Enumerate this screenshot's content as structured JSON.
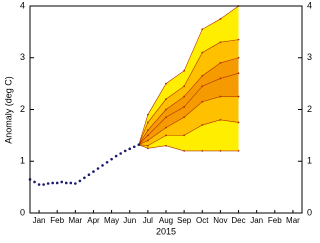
{
  "chart_data": {
    "type": "plume",
    "y_label": "Anomaly (deg C)",
    "x_label": "2015",
    "xlim": [
      0,
      15
    ],
    "xticks": [
      {
        "value": 0.5,
        "label": "Jan"
      },
      {
        "value": 1.5,
        "label": "Feb"
      },
      {
        "value": 2.5,
        "label": "Mar"
      },
      {
        "value": 3.5,
        "label": "Apr"
      },
      {
        "value": 4.5,
        "label": "May"
      },
      {
        "value": 5.5,
        "label": "Jun"
      },
      {
        "value": 6.5,
        "label": "Jul"
      },
      {
        "value": 7.5,
        "label": "Aug"
      },
      {
        "value": 8.5,
        "label": "Sep"
      },
      {
        "value": 9.5,
        "label": "Oct"
      },
      {
        "value": 10.5,
        "label": "Nov"
      },
      {
        "value": 11.5,
        "label": "Dec"
      },
      {
        "value": 12.5,
        "label": "Jan"
      },
      {
        "value": 13.5,
        "label": "Feb"
      },
      {
        "value": 14.5,
        "label": "Mar"
      }
    ],
    "ylim": [
      0,
      4
    ],
    "yticks": [
      0,
      1,
      2,
      3,
      4
    ],
    "observed": {
      "color": "#1a1a6e",
      "x": [
        0,
        0.25,
        0.5,
        0.75,
        1,
        1.25,
        1.5,
        1.75,
        2,
        2.25,
        2.5,
        2.75,
        3,
        3.25,
        3.5,
        3.75,
        4,
        4.25,
        4.5,
        4.75,
        5,
        5.25,
        5.5,
        5.75,
        6
      ],
      "values": [
        0.65,
        0.6,
        0.55,
        0.55,
        0.57,
        0.58,
        0.58,
        0.6,
        0.58,
        0.58,
        0.57,
        0.62,
        0.68,
        0.74,
        0.8,
        0.86,
        0.92,
        0.98,
        1.04,
        1.1,
        1.15,
        1.2,
        1.24,
        1.28,
        1.32
      ]
    },
    "forecast": {
      "x": [
        6,
        6.5,
        7.5,
        8.5,
        9.5,
        10.5,
        11.5
      ],
      "line_color": "#b03000",
      "band_colors": [
        "#ffee00",
        "#ffc000",
        "#f59a00",
        "#f59a00",
        "#ffc000",
        "#ffee00"
      ],
      "series": [
        {
          "values": [
            1.32,
            1.9,
            2.5,
            2.75,
            3.55,
            3.75,
            4.0
          ]
        },
        {
          "values": [
            1.32,
            1.75,
            2.2,
            2.45,
            3.1,
            3.3,
            3.35
          ]
        },
        {
          "values": [
            1.32,
            1.6,
            2.0,
            2.25,
            2.65,
            2.9,
            3.0
          ]
        },
        {
          "values": [
            1.32,
            1.5,
            1.85,
            2.05,
            2.45,
            2.6,
            2.7
          ]
        },
        {
          "values": [
            1.32,
            1.4,
            1.65,
            1.85,
            2.15,
            2.25,
            2.25
          ]
        },
        {
          "values": [
            1.32,
            1.3,
            1.5,
            1.5,
            1.7,
            1.8,
            1.75
          ]
        },
        {
          "values": [
            1.32,
            1.25,
            1.3,
            1.2,
            1.2,
            1.2,
            1.2
          ]
        }
      ]
    }
  }
}
